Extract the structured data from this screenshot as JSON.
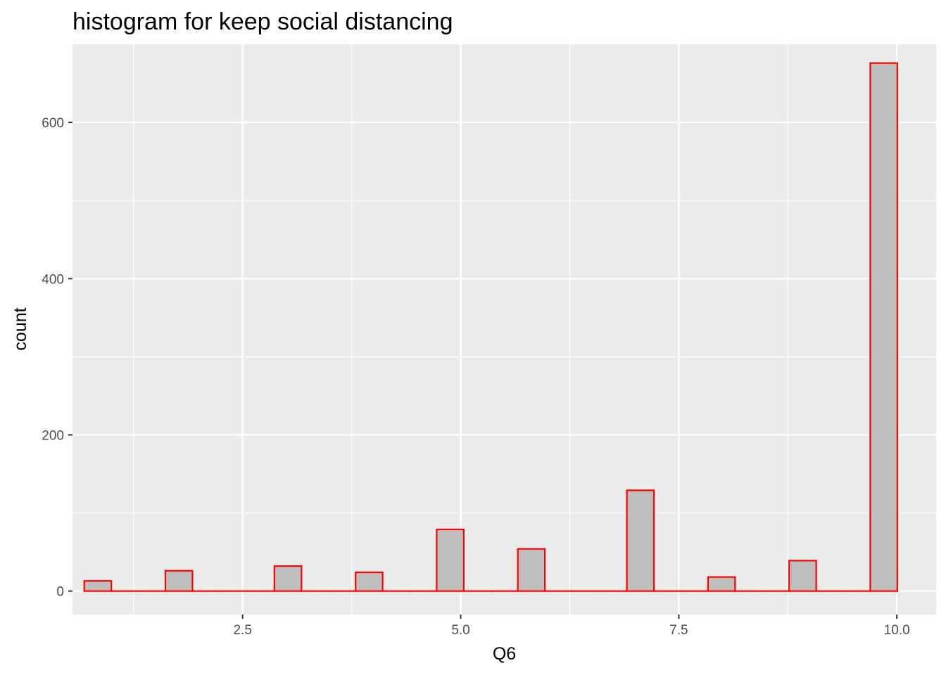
{
  "chart_data": {
    "type": "bar",
    "title": "histogram for keep social distancing",
    "xlabel": "Q6",
    "ylabel": "count",
    "xlim": [
      0.55,
      10.45
    ],
    "ylim": [
      -30,
      700
    ],
    "x_ticks": [
      {
        "value": 2.5,
        "label": "2.5"
      },
      {
        "value": 5.0,
        "label": "5.0"
      },
      {
        "value": 7.5,
        "label": "7.5"
      },
      {
        "value": 10.0,
        "label": "10.0"
      }
    ],
    "x_minor_ticks": [
      1.25,
      3.75,
      6.25,
      8.75
    ],
    "y_ticks": [
      {
        "value": 0,
        "label": "0"
      },
      {
        "value": 200,
        "label": "200"
      },
      {
        "value": 400,
        "label": "400"
      },
      {
        "value": 600,
        "label": "600"
      }
    ],
    "y_minor_ticks": [
      100,
      300,
      500
    ],
    "bin_width": 0.31,
    "bins": [
      {
        "x": 0.84,
        "count": 13
      },
      {
        "x": 1.15,
        "count": 0
      },
      {
        "x": 1.46,
        "count": 0
      },
      {
        "x": 1.77,
        "count": 26
      },
      {
        "x": 2.08,
        "count": 0
      },
      {
        "x": 2.39,
        "count": 0
      },
      {
        "x": 2.71,
        "count": 0
      },
      {
        "x": 3.02,
        "count": 32
      },
      {
        "x": 3.33,
        "count": 0
      },
      {
        "x": 3.64,
        "count": 0
      },
      {
        "x": 3.95,
        "count": 24
      },
      {
        "x": 4.26,
        "count": 0
      },
      {
        "x": 4.57,
        "count": 0
      },
      {
        "x": 4.88,
        "count": 79
      },
      {
        "x": 5.19,
        "count": 0
      },
      {
        "x": 5.5,
        "count": 0
      },
      {
        "x": 5.81,
        "count": 54
      },
      {
        "x": 6.12,
        "count": 0
      },
      {
        "x": 6.43,
        "count": 0
      },
      {
        "x": 6.74,
        "count": 0
      },
      {
        "x": 7.06,
        "count": 129
      },
      {
        "x": 7.37,
        "count": 0
      },
      {
        "x": 7.68,
        "count": 0
      },
      {
        "x": 7.99,
        "count": 18
      },
      {
        "x": 8.3,
        "count": 0
      },
      {
        "x": 8.61,
        "count": 0
      },
      {
        "x": 8.92,
        "count": 39
      },
      {
        "x": 9.23,
        "count": 0
      },
      {
        "x": 9.54,
        "count": 0
      },
      {
        "x": 9.85,
        "count": 676
      }
    ],
    "grid": true,
    "colors": {
      "panel_background": "#ebebeb",
      "grid_line": "#ffffff",
      "bar_fill": "#bebebe",
      "bar_outline": "#ff0000",
      "tick_mark": "#333333",
      "tick_label": "#4d4d4d"
    }
  }
}
